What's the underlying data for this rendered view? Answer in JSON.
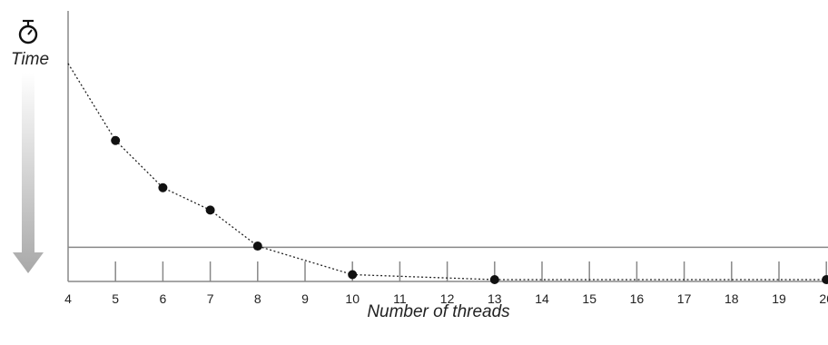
{
  "chart_data": {
    "type": "line",
    "title": "",
    "xlabel": "Number of threads",
    "ylabel": "Time",
    "y_icon": "stopwatch-icon",
    "y_direction": "down",
    "ticks": [
      "4",
      "5",
      "6",
      "7",
      "8",
      "9",
      "10",
      "11",
      "12",
      "13",
      "14",
      "15",
      "16",
      "17",
      "18",
      "19",
      "20"
    ],
    "series": [
      {
        "x": [
          "4",
          "5",
          "6",
          "7",
          "8",
          "10",
          "13",
          "20"
        ],
        "y": [
          8.7,
          5.6,
          3.7,
          2.8,
          1.35,
          0.2,
          0.0,
          0.0
        ],
        "markers": [
          false,
          true,
          true,
          true,
          true,
          true,
          true,
          true
        ]
      }
    ],
    "reference_line": 1.3,
    "ylim": [
      0,
      9.5
    ],
    "grid": false,
    "colors": {
      "line": "#222222",
      "axis": "#888888",
      "arrow": "#b0b0b0"
    }
  }
}
